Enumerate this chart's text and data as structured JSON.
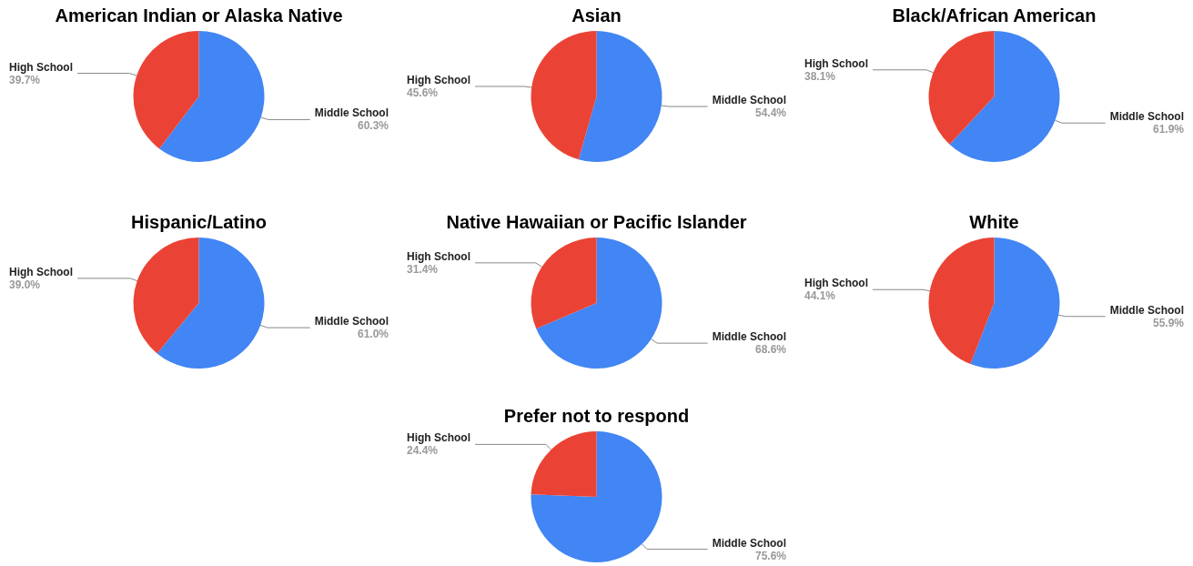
{
  "chart_data": [
    {
      "type": "pie",
      "title": "American Indian or Alaska Native",
      "categories": [
        "Middle School",
        "High School"
      ],
      "values": [
        60.3,
        39.7
      ],
      "value_labels": [
        "60.3%",
        "39.7%"
      ],
      "colors": [
        "#4285f4",
        "#ea4335"
      ]
    },
    {
      "type": "pie",
      "title": "Asian",
      "categories": [
        "Middle School",
        "High School"
      ],
      "values": [
        54.4,
        45.6
      ],
      "value_labels": [
        "54.4%",
        "45.6%"
      ],
      "colors": [
        "#4285f4",
        "#ea4335"
      ]
    },
    {
      "type": "pie",
      "title": "Black/African American",
      "categories": [
        "Middle School",
        "High School"
      ],
      "values": [
        61.9,
        38.1
      ],
      "value_labels": [
        "61.9%",
        "38.1%"
      ],
      "colors": [
        "#4285f4",
        "#ea4335"
      ]
    },
    {
      "type": "pie",
      "title": "Hispanic/Latino",
      "categories": [
        "Middle School",
        "High School"
      ],
      "values": [
        61.0,
        39.0
      ],
      "value_labels": [
        "61.0%",
        "39.0%"
      ],
      "colors": [
        "#4285f4",
        "#ea4335"
      ]
    },
    {
      "type": "pie",
      "title": "Native Hawaiian or Pacific Islander",
      "categories": [
        "Middle School",
        "High School"
      ],
      "values": [
        68.6,
        31.4
      ],
      "value_labels": [
        "68.6%",
        "31.4%"
      ],
      "colors": [
        "#4285f4",
        "#ea4335"
      ]
    },
    {
      "type": "pie",
      "title": "White",
      "categories": [
        "Middle School",
        "High School"
      ],
      "values": [
        55.9,
        44.1
      ],
      "value_labels": [
        "55.9%",
        "44.1%"
      ],
      "colors": [
        "#4285f4",
        "#ea4335"
      ]
    },
    {
      "type": "pie",
      "title": "Prefer not to respond",
      "categories": [
        "Middle School",
        "High School"
      ],
      "values": [
        75.6,
        24.4
      ],
      "value_labels": [
        "75.6%",
        "24.4%"
      ],
      "colors": [
        "#4285f4",
        "#ea4335"
      ]
    }
  ]
}
